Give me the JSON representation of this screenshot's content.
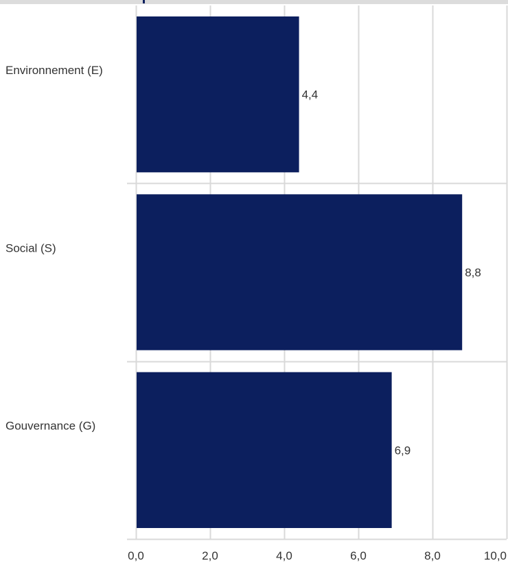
{
  "chart_data": {
    "type": "bar",
    "orientation": "horizontal",
    "categories": [
      "Environnement (E)",
      "Social (S)",
      "Gouvernance (G)"
    ],
    "values": [
      4.4,
      8.8,
      6.9
    ],
    "value_labels": [
      "4,4",
      "8,8",
      "6,9"
    ],
    "xlim": [
      0,
      10
    ],
    "xticks": [
      0,
      2,
      4,
      6,
      8,
      10
    ],
    "xtick_labels": [
      "0,0",
      "2,0",
      "4,0",
      "6,0",
      "8,0",
      "10,0"
    ],
    "grid": true,
    "legend": "none",
    "bar_color": "#0c1f5e",
    "grid_color": "#d9d9d9"
  }
}
